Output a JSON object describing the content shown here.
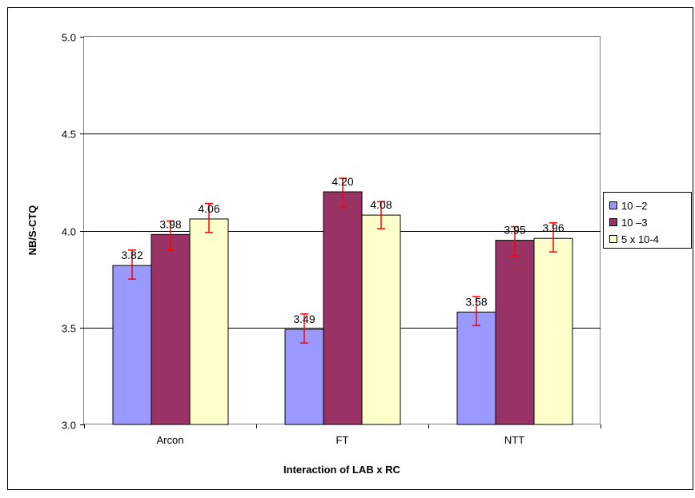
{
  "chart_data": {
    "type": "bar",
    "title": "",
    "xlabel": "Interaction of LAB x RC",
    "ylabel": "NB/S-CTQ",
    "ylim": [
      3.0,
      5.0
    ],
    "yticks": [
      "3.0",
      "3.5",
      "4.0",
      "4.5",
      "5.0"
    ],
    "yticks_values": [
      3.0,
      3.5,
      4.0,
      4.5,
      5.0
    ],
    "grid": true,
    "legend_position": "right",
    "categories": [
      "Arcon",
      "FT",
      "NTT"
    ],
    "series": [
      {
        "name": "10 –2",
        "color": "#9999ff",
        "values": [
          3.82,
          3.49,
          3.58
        ],
        "labels": [
          "3.82",
          "3.49",
          "3.58"
        ],
        "err_low": [
          3.75,
          3.42,
          3.51
        ],
        "err_high": [
          3.9,
          3.57,
          3.66
        ]
      },
      {
        "name": "10 –3",
        "color": "#993366",
        "values": [
          3.98,
          4.2,
          3.95
        ],
        "labels": [
          "3.98",
          "4.20",
          "3.95"
        ],
        "err_low": [
          3.9,
          4.12,
          3.87
        ],
        "err_high": [
          4.05,
          4.27,
          4.02
        ]
      },
      {
        "name": "5 x 10-4",
        "color": "#ffffcc",
        "values": [
          4.06,
          4.08,
          3.96
        ],
        "labels": [
          "4.06",
          "4.08",
          "3.96"
        ],
        "err_low": [
          3.99,
          4.01,
          3.89
        ],
        "err_high": [
          4.14,
          4.15,
          4.04
        ]
      }
    ],
    "error_bar_color": "#ff0000"
  }
}
